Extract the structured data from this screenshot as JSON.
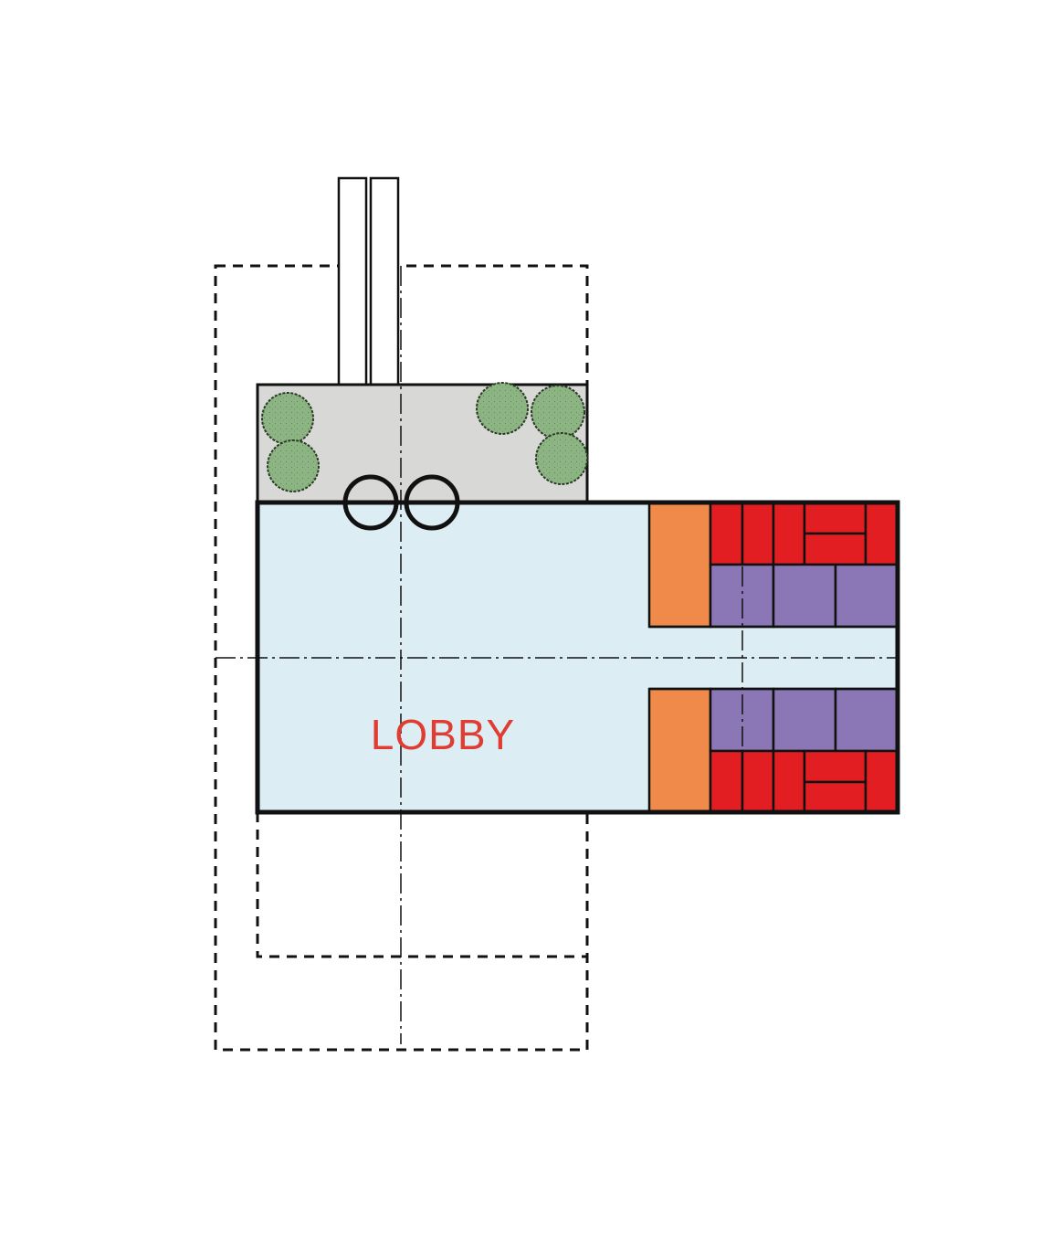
{
  "diagram": {
    "type": "architectural-floor-plan",
    "rooms": [
      {
        "label": "LOBBY"
      }
    ],
    "colors": {
      "lobby_fill": "#dcedf3",
      "courtyard_fill": "#d8d9d6",
      "core_fill": "#ef8a4a",
      "unit_red": "#e31e22",
      "unit_purple": "#8b77b5",
      "tree_fill": "#8db583",
      "tree_stroke": "#2a3a26",
      "label_color": "#e03c31",
      "line_color": "#111111"
    },
    "elements": [
      "lobby-area",
      "courtyard",
      "trees",
      "revolving-doors",
      "entry-walkways",
      "vertical-core",
      "residential-units",
      "site-outline",
      "center-axes"
    ]
  }
}
